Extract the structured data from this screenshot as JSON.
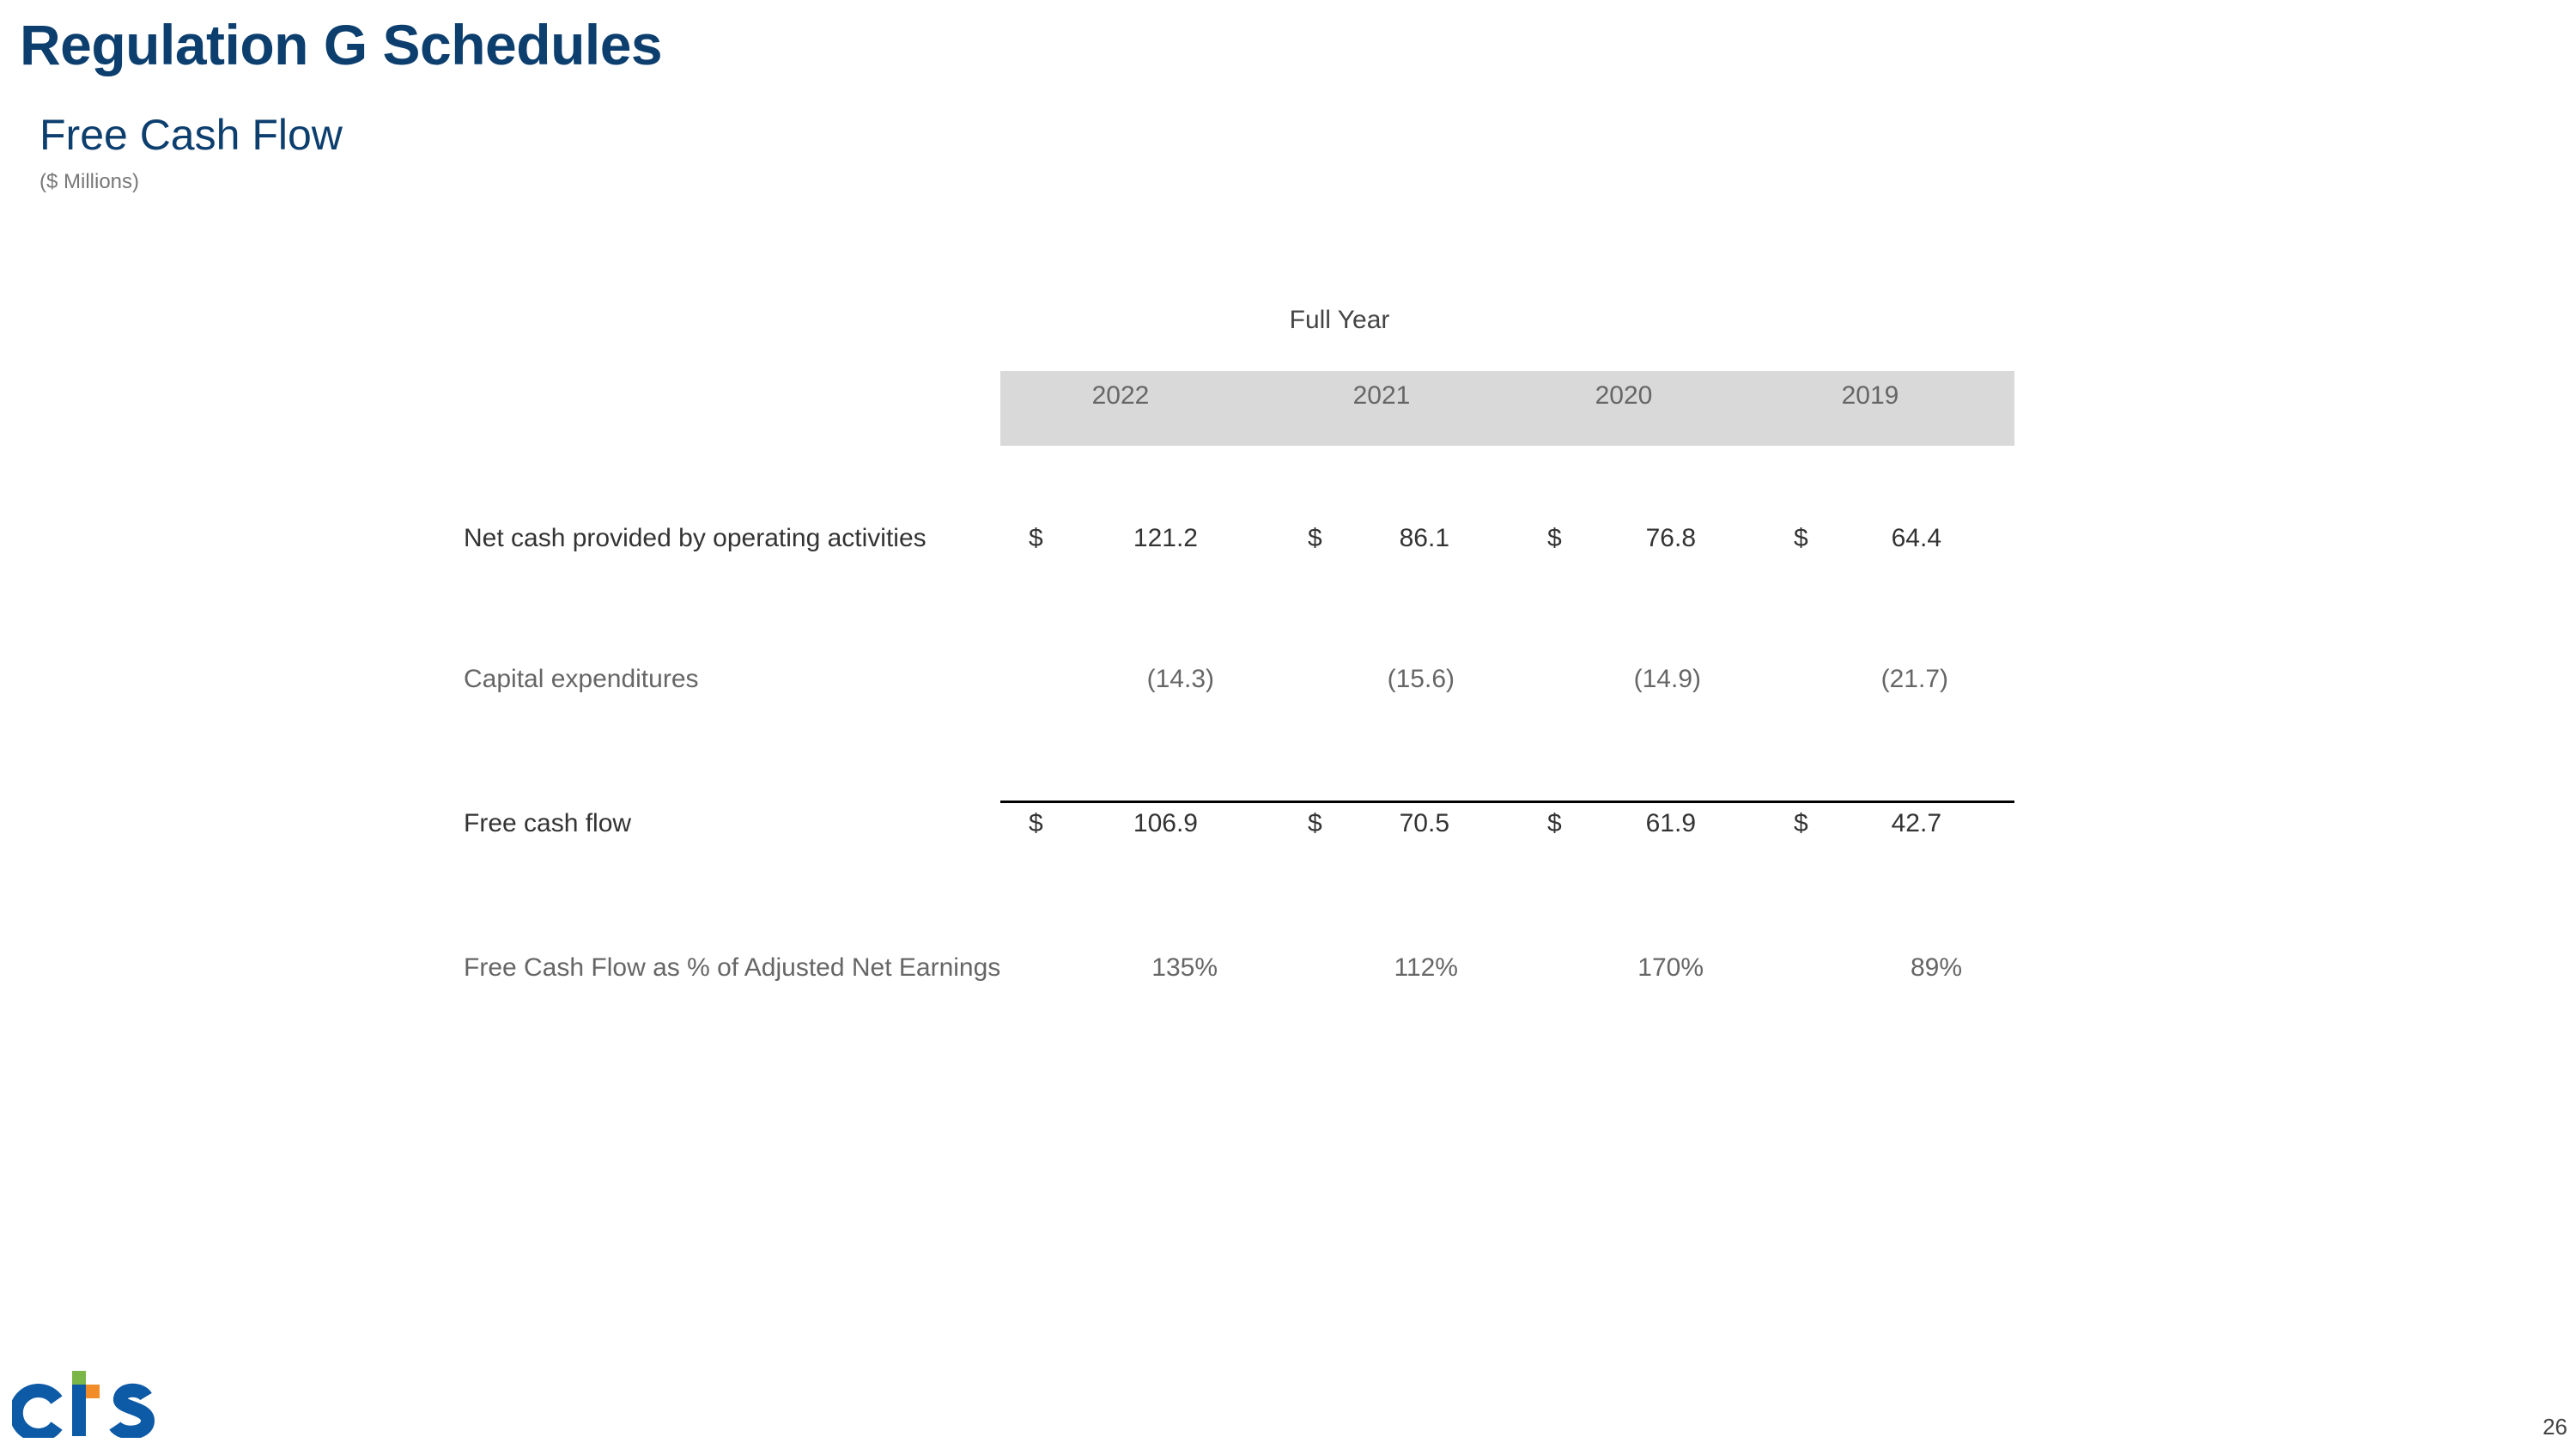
{
  "header": {
    "title": "Regulation G Schedules",
    "section": "Free Cash Flow",
    "units": "($ Millions)"
  },
  "table": {
    "period_heading": "Full Year",
    "years": [
      "2022",
      "2021",
      "2020",
      "2019"
    ],
    "rows": [
      {
        "label": "Net cash provided by operating activities",
        "currency_symbol": "$",
        "values": [
          "121.2",
          "86.1",
          "76.8",
          "64.4"
        ]
      },
      {
        "label": "Capital expenditures",
        "values": [
          "(14.3)",
          "(15.6)",
          "(14.9)",
          "(21.7)"
        ]
      },
      {
        "label": "Free cash flow",
        "currency_symbol": "$",
        "values": [
          "106.9",
          "70.5",
          "61.9",
          "42.7"
        ]
      },
      {
        "label": "Free Cash Flow as % of Adjusted Net Earnings",
        "values": [
          "135%",
          "112%",
          "170%",
          "89%"
        ]
      }
    ]
  },
  "footer": {
    "page_number": "26",
    "logo_text": "cts"
  },
  "colors": {
    "brand_blue": "#0c3e6e",
    "logo_blue": "#0d5aa7",
    "logo_green": "#7ab648",
    "logo_orange": "#f28c28",
    "header_band": "#d9d9d9"
  }
}
